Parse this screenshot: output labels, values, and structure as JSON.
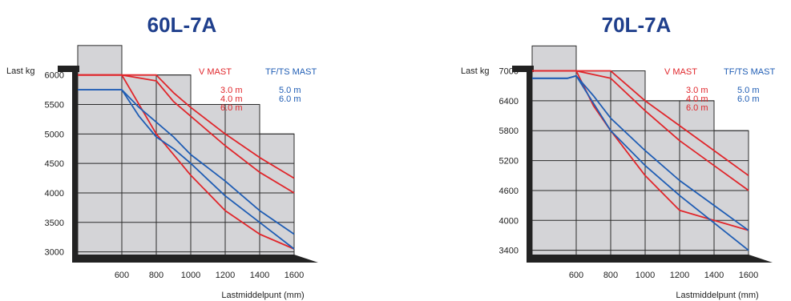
{
  "chart_data": [
    {
      "type": "line",
      "title": "60L-7A",
      "ylabel": "Last kg",
      "xlabel": "Lastmiddelpunt (mm)",
      "x_ticks": [
        "600",
        "800",
        "1000",
        "1200",
        "1400",
        "1600"
      ],
      "y_ticks": [
        "3000",
        "3500",
        "4000",
        "4500",
        "5000",
        "5500",
        "6000"
      ],
      "ylim": [
        2900,
        7000
      ],
      "xlim": [
        400,
        1650
      ],
      "legend": {
        "v_mast_title": "V  MAST",
        "tfts_mast_title": "TF/TS MAST",
        "v_mast_items": [
          "3.0 m",
          "4.0 m",
          "6.0 m"
        ],
        "tfts_mast_items": [
          "5.0 m",
          "6.0 m"
        ]
      },
      "series": [
        {
          "color": "#e0262b",
          "x": [
            400,
            600,
            800,
            900,
            1000,
            1200,
            1400,
            1600
          ],
          "y": [
            6000,
            6000,
            6000,
            5700,
            5450,
            5000,
            4600,
            4250
          ]
        },
        {
          "color": "#e0262b",
          "x": [
            400,
            600,
            800,
            900,
            1000,
            1200,
            1400,
            1600
          ],
          "y": [
            6000,
            6000,
            5900,
            5550,
            5300,
            4800,
            4350,
            4000
          ]
        },
        {
          "color": "#e0262b",
          "x": [
            400,
            600,
            700,
            800,
            900,
            1000,
            1200,
            1400,
            1600
          ],
          "y": [
            6000,
            6000,
            5500,
            5000,
            4650,
            4300,
            3700,
            3300,
            3050
          ]
        },
        {
          "color": "#1f5db4",
          "x": [
            400,
            600,
            700,
            800,
            900,
            1000,
            1200,
            1400,
            1600
          ],
          "y": [
            5750,
            5750,
            5450,
            5200,
            4950,
            4650,
            4200,
            3700,
            3300
          ]
        },
        {
          "color": "#1f5db4",
          "x": [
            400,
            600,
            700,
            800,
            900,
            1000,
            1200,
            1400,
            1600
          ],
          "y": [
            5750,
            5750,
            5300,
            4950,
            4750,
            4500,
            3950,
            3500,
            3050
          ]
        }
      ]
    },
    {
      "type": "line",
      "title": "70L-7A",
      "ylabel": "Last kg",
      "xlabel": "Lastmiddelpunt (mm)",
      "x_ticks": [
        "600",
        "800",
        "1000",
        "1200",
        "1400",
        "1600"
      ],
      "y_ticks": [
        "3400",
        "4000",
        "4600",
        "5200",
        "5800",
        "6400",
        "7000"
      ],
      "ylim": [
        3250,
        8100
      ],
      "xlim": [
        400,
        1650
      ],
      "legend": {
        "v_mast_title": "V  MAST",
        "tfts_mast_title": "TF/TS MAST",
        "v_mast_items": [
          "3.0 m",
          "4 0 m",
          "6.0 m"
        ],
        "tfts_mast_items": [
          "5.0 m",
          "6.0 m"
        ]
      },
      "series": [
        {
          "color": "#e0262b",
          "x": [
            400,
            600,
            800,
            1000,
            1200,
            1400,
            1600
          ],
          "y": [
            7000,
            7000,
            7000,
            6400,
            5900,
            5400,
            4900
          ]
        },
        {
          "color": "#e0262b",
          "x": [
            400,
            600,
            800,
            1000,
            1200,
            1400,
            1600
          ],
          "y": [
            7000,
            7000,
            6850,
            6200,
            5600,
            5100,
            4600
          ]
        },
        {
          "color": "#e0262b",
          "x": [
            400,
            600,
            700,
            800,
            1000,
            1200,
            1400,
            1600
          ],
          "y": [
            7000,
            7000,
            6300,
            5800,
            4900,
            4200,
            4000,
            3800
          ]
        },
        {
          "color": "#1f5db4",
          "x": [
            400,
            550,
            600,
            700,
            800,
            1000,
            1200,
            1400,
            1600
          ],
          "y": [
            6850,
            6850,
            6900,
            6500,
            6050,
            5400,
            4800,
            4300,
            3800
          ]
        },
        {
          "color": "#1f5db4",
          "x": [
            400,
            550,
            600,
            700,
            800,
            1000,
            1200,
            1400,
            1600
          ],
          "y": [
            6850,
            6850,
            6900,
            6350,
            5800,
            5100,
            4500,
            3950,
            3400
          ]
        }
      ]
    }
  ]
}
